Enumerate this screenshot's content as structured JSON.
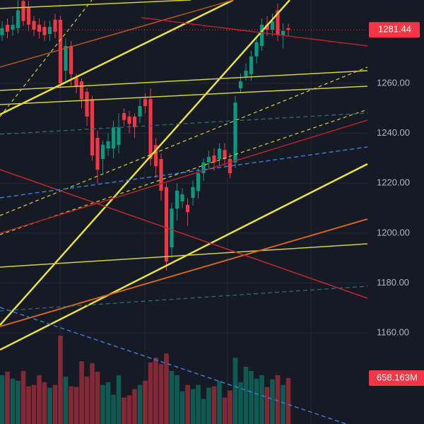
{
  "chart_data": {
    "type": "candlestick",
    "open": [
      1279.3,
      1283.5,
      1281.5,
      1282.1,
      1293,
      1290.5,
      1285,
      1283.5,
      1282.6,
      1279.8,
      1285.5,
      1285.5,
      1265.1,
      1275,
      1262.3,
      1260.8,
      1256.6,
      1253.7,
      1238.2,
      1229.7,
      1233.9,
      1233.9,
      1235.3,
      1248.1,
      1246.7,
      1246.7,
      1246.7,
      1253.7,
      1253.7,
      1235.3,
      1229.7,
      1218.4,
      1194.3,
      1209.8,
      1212.7,
      1211.3,
      1214.1,
      1216.9,
      1224,
      1228.3,
      1231.1,
      1229.7,
      1233.3,
      1229.7,
      1228.3,
      1258,
      1262.8,
      1263.7,
      1270.8,
      1275,
      1283.5,
      1281.5,
      1289.2,
      1279.3,
      1282.1
    ],
    "high": [
      1284.9,
      1286,
      1287,
      1295,
      1296,
      1293,
      1287,
      1286,
      1285,
      1285,
      1288,
      1287,
      1278,
      1277,
      1264,
      1262,
      1258,
      1255,
      1241,
      1237,
      1240,
      1245,
      1248,
      1250,
      1249,
      1248,
      1254,
      1256,
      1258,
      1238,
      1232,
      1220,
      1212,
      1220,
      1218,
      1214,
      1221,
      1226,
      1230,
      1233,
      1234,
      1236,
      1236,
      1232,
      1255,
      1264,
      1268,
      1273,
      1279,
      1286,
      1287,
      1288,
      1292,
      1284,
      1284
    ],
    "low": [
      1277,
      1278,
      1279,
      1280,
      1283,
      1281,
      1279,
      1278,
      1277,
      1277,
      1278,
      1258,
      1261,
      1259,
      1256,
      1250,
      1243,
      1229,
      1220,
      1224,
      1231,
      1230,
      1232,
      1243,
      1240,
      1238,
      1244,
      1248,
      1227,
      1222,
      1213,
      1185,
      1190,
      1205,
      1210,
      1203,
      1211,
      1214,
      1221,
      1226,
      1225,
      1227,
      1227,
      1222,
      1226,
      1256,
      1261,
      1261,
      1268,
      1273,
      1279,
      1279,
      1277,
      1274,
      1279
    ],
    "close": [
      1282.1,
      1280.7,
      1283.5,
      1289.2,
      1285,
      1283.5,
      1281.5,
      1280.7,
      1279.3,
      1282.6,
      1280.7,
      1260,
      1275,
      1263.7,
      1258.9,
      1253.7,
      1246.7,
      1231.1,
      1225.4,
      1235.4,
      1236.8,
      1242.4,
      1242.4,
      1245.3,
      1243.8,
      1242.4,
      1250.9,
      1250.9,
      1229.7,
      1226.8,
      1217,
      1188.6,
      1209.8,
      1217,
      1215.5,
      1208.4,
      1218.4,
      1224,
      1228.3,
      1230.5,
      1228.3,
      1233.9,
      1229.7,
      1224,
      1252.3,
      1260.8,
      1265.1,
      1270.8,
      1276.4,
      1283.5,
      1281.5,
      1285,
      1279.3,
      1281,
      1281.44
    ],
    "volume": [
      700,
      750,
      650,
      620,
      760,
      540,
      560,
      700,
      600,
      520,
      560,
      1265,
      680,
      540,
      530,
      900,
      680,
      870,
      750,
      560,
      600,
      420,
      700,
      380,
      410,
      500,
      560,
      620,
      880,
      950,
      860,
      1010,
      760,
      700,
      470,
      560,
      500,
      560,
      360,
      520,
      540,
      620,
      380,
      480,
      950,
      600,
      820,
      760,
      650,
      700,
      530,
      640,
      700,
      560,
      658.163
    ],
    "last_volume_label": "658.163M",
    "ylim": [
      1123.5,
      1293.4
    ],
    "yticks": [
      {
        "value": 1160,
        "label": "1160.00"
      },
      {
        "value": 1180,
        "label": "1180.00"
      },
      {
        "value": 1200,
        "label": "1200.00"
      },
      {
        "value": 1220,
        "label": "1220.00"
      },
      {
        "value": 1240,
        "label": "1240.00"
      },
      {
        "value": 1260,
        "label": "1260.00"
      }
    ],
    "volume_ylim": [
      0,
      6075
    ],
    "up_color": "#089981",
    "down_color": "#f23645",
    "grid": true
  }
}
